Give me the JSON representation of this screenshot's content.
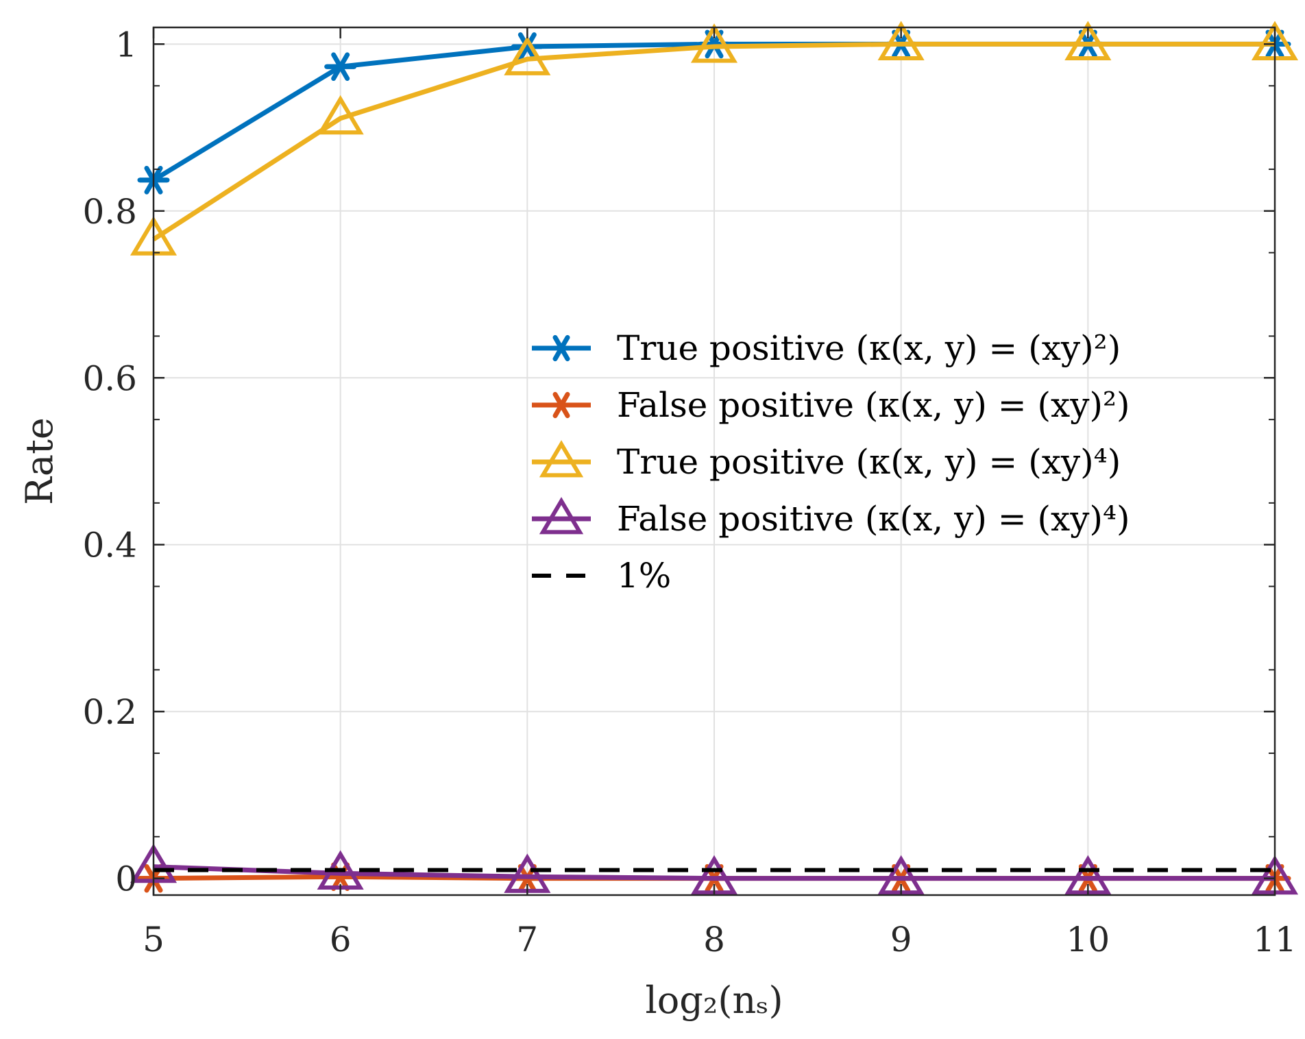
{
  "chart_data": {
    "type": "line",
    "x": [
      5,
      6,
      7,
      8,
      9,
      10,
      11
    ],
    "xlabel": "log₂(nₛ)",
    "ylabel": "Rate",
    "xlim": [
      5,
      11
    ],
    "ylim": [
      -0.02,
      1.02
    ],
    "xticks": [
      "5",
      "6",
      "7",
      "8",
      "9",
      "10",
      "11"
    ],
    "yticks": [
      "0",
      "0.2",
      "0.4",
      "0.6",
      "0.8",
      "1"
    ],
    "ytick_values": [
      0,
      0.2,
      0.4,
      0.6,
      0.8,
      1
    ],
    "grid": true,
    "legend_position": "center-right",
    "series": [
      {
        "name": "True positive (κ(x, y) = (xy)²)",
        "color": "#0072BD",
        "marker": "asterisk",
        "dashed": false,
        "values": [
          0.837,
          0.973,
          0.997,
          1.0,
          1.0,
          1.0,
          1.0
        ]
      },
      {
        "name": "False positive (κ(x, y) = (xy)²)",
        "color": "#D95319",
        "marker": "asterisk",
        "dashed": false,
        "values": [
          0.0,
          0.002,
          0.0,
          0.0,
          0.0,
          0.0,
          0.0
        ]
      },
      {
        "name": "True positive (κ(x, y) = (xy)⁴)",
        "color": "#EDB120",
        "marker": "triangle",
        "dashed": false,
        "values": [
          0.766,
          0.911,
          0.982,
          0.997,
          1.0,
          1.0,
          1.0
        ]
      },
      {
        "name": "False positive (κ(x, y) = (xy)⁴)",
        "color": "#7E2F8E",
        "marker": "triangle",
        "dashed": false,
        "values": [
          0.014,
          0.006,
          0.002,
          0.0,
          0.0,
          0.0,
          0.0
        ]
      },
      {
        "name": "1%",
        "color": "#000000",
        "marker": "none",
        "dashed": true,
        "values": [
          0.01,
          0.01,
          0.01,
          0.01,
          0.01,
          0.01,
          0.01
        ]
      }
    ]
  }
}
